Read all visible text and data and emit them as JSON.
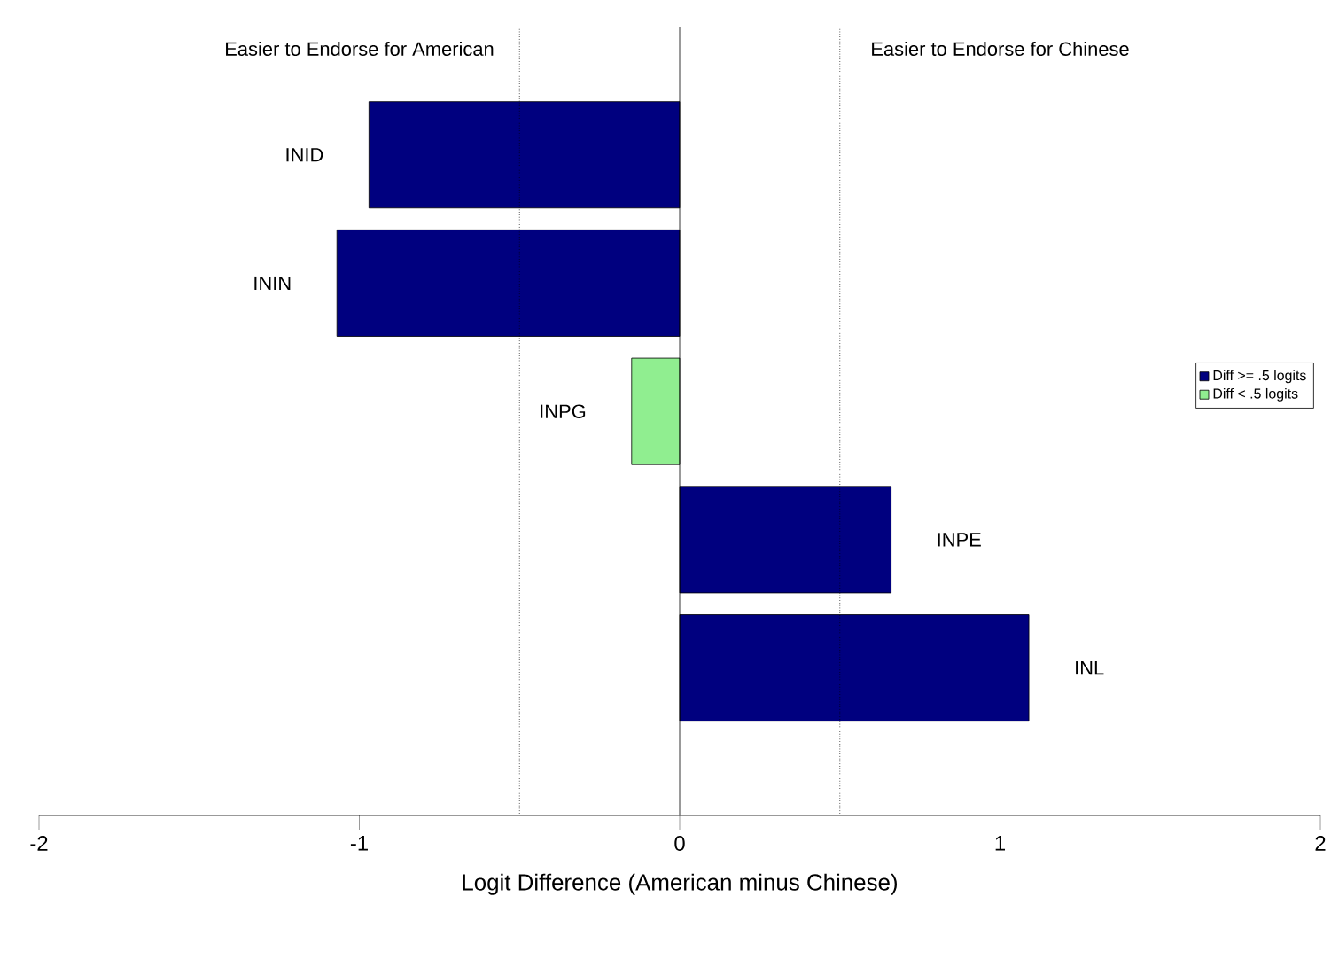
{
  "chart_data": {
    "type": "bar",
    "orientation": "horizontal",
    "categories": [
      "INID",
      "ININ",
      "INPG",
      "INPE",
      "INL"
    ],
    "series": [
      {
        "name": "Diff >= .5 logits",
        "color": "#00007f",
        "values": [
          -0.97,
          -1.07,
          null,
          0.66,
          1.09
        ]
      },
      {
        "name": "Diff < .5 logits",
        "color": "#90ee90",
        "values": [
          null,
          null,
          -0.15,
          null,
          null
        ]
      }
    ],
    "xlim": [
      -2,
      2
    ],
    "xticks": [
      -2,
      -1,
      0,
      1,
      2
    ],
    "xlabel": "Logit Difference (American minus Chinese)",
    "annotations": [
      "Easier to Endorse for American",
      "Easier to Endorse for Chinese"
    ],
    "ref_lines": [
      {
        "axis": "x",
        "value": 0,
        "line_style": "solid"
      },
      {
        "axis": "x",
        "value": -0.5,
        "line_style": "dotted"
      },
      {
        "axis": "x",
        "value": 0.5,
        "line_style": "dotted"
      }
    ],
    "legend": "right",
    "tick_labels": "x",
    "grid": false
  }
}
